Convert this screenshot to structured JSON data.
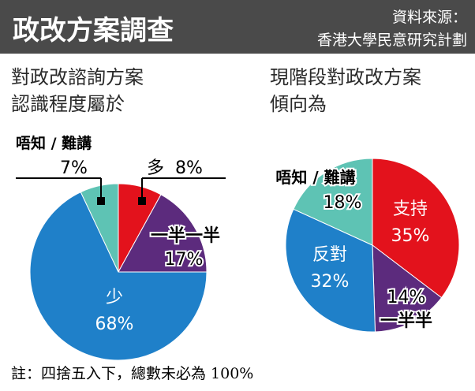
{
  "header": {
    "title": "政改方案調查",
    "source_line1": "資料來源：",
    "source_line2": "香港大學民意研究計劃",
    "bar_color": "#4a4a4a"
  },
  "footnote": "註：四捨五入下，總數未必為 100%",
  "chart_data": [
    {
      "type": "pie",
      "title_lines": [
        "對政改諮詢方案",
        "認識程度屬於"
      ],
      "slices": [
        {
          "label": "多",
          "value": 8,
          "display": "8%",
          "color": "#e3121c"
        },
        {
          "label": "一半一半",
          "value": 17,
          "display": "17%",
          "color": "#5c2b7d"
        },
        {
          "label": "少",
          "value": 68,
          "display": "68%",
          "color": "#1f80c9"
        },
        {
          "label": "唔知／難講",
          "value": 7,
          "display": "7%",
          "color": "#5ec3b4"
        }
      ],
      "legend_label_text": "唔知 / 難講",
      "callout_duo": "多",
      "callout_8": "8%",
      "callout_7": "7%"
    },
    {
      "type": "pie",
      "title_lines": [
        "現階段對政改方案",
        "傾向為"
      ],
      "slices": [
        {
          "label": "支持",
          "value": 35,
          "display": "35%",
          "color": "#e3121c"
        },
        {
          "label": "一半半",
          "value": 14,
          "display": "14%",
          "color": "#5c2b7d"
        },
        {
          "label": "反對",
          "value": 32,
          "display": "32%",
          "color": "#1f80c9"
        },
        {
          "label": "唔知／難講",
          "value": 18,
          "display": "18%",
          "color": "#5ec3b4"
        }
      ],
      "legend_label_text": "唔知 / 難講"
    }
  ]
}
